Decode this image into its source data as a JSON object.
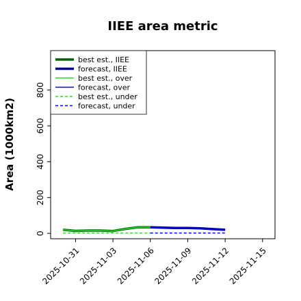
{
  "chart_data": {
    "type": "line",
    "title": "IIEE area metric",
    "xlabel": "",
    "ylabel": "Area (1000km2)",
    "ylim": [
      -30,
      1020
    ],
    "xlim": [
      "2025-10-29",
      "2025-11-16"
    ],
    "grid": false,
    "legend_placement": "top-left",
    "x_ticks": [
      "2025-10-31",
      "2025-11-03",
      "2025-11-06",
      "2025-11-09",
      "2025-11-12",
      "2025-11-15"
    ],
    "x_tick_colors": [
      "#000000",
      "#000000",
      "#228b22",
      "#000000",
      "#000000",
      "#000000"
    ],
    "y_ticks": [
      0,
      200,
      400,
      600,
      800
    ],
    "series": [
      {
        "name": "best est., IIEE",
        "color": "#006400",
        "width": 3.5,
        "dash": "",
        "x": [
          "2025-10-30",
          "2025-10-31",
          "2025-11-01",
          "2025-11-02",
          "2025-11-03",
          "2025-11-04",
          "2025-11-05",
          "2025-11-06"
        ],
        "y": [
          20,
          14,
          16,
          16,
          13,
          25,
          34,
          34
        ]
      },
      {
        "name": "forecast, IIEE",
        "color": "#00008b",
        "width": 3.5,
        "dash": "",
        "x": [
          "2025-11-06",
          "2025-11-07",
          "2025-11-08",
          "2025-11-09",
          "2025-11-10",
          "2025-11-11",
          "2025-11-12"
        ],
        "y": [
          34,
          32,
          30,
          30,
          28,
          24,
          20
        ]
      },
      {
        "name": "best est., over",
        "color": "#22dd22",
        "width": 1.5,
        "dash": "",
        "x": [
          "2025-10-30",
          "2025-10-31",
          "2025-11-01",
          "2025-11-02",
          "2025-11-03",
          "2025-11-04",
          "2025-11-05",
          "2025-11-06"
        ],
        "y": [
          20,
          14,
          16,
          16,
          13,
          25,
          34,
          34
        ]
      },
      {
        "name": "forecast, over",
        "color": "#0000ff",
        "width": 1.5,
        "dash": "",
        "x": [
          "2025-11-06",
          "2025-11-07",
          "2025-11-08",
          "2025-11-09",
          "2025-11-10",
          "2025-11-11",
          "2025-11-12"
        ],
        "y": [
          34,
          32,
          30,
          30,
          28,
          24,
          20
        ]
      },
      {
        "name": "best est., under",
        "color": "#22dd22",
        "width": 1.5,
        "dash": "4,3",
        "x": [
          "2025-10-30",
          "2025-11-06"
        ],
        "y": [
          2,
          2
        ]
      },
      {
        "name": "forecast, under",
        "color": "#0000ff",
        "width": 1.5,
        "dash": "4,3",
        "x": [
          "2025-11-06",
          "2025-11-12"
        ],
        "y": [
          2,
          2
        ]
      }
    ]
  }
}
